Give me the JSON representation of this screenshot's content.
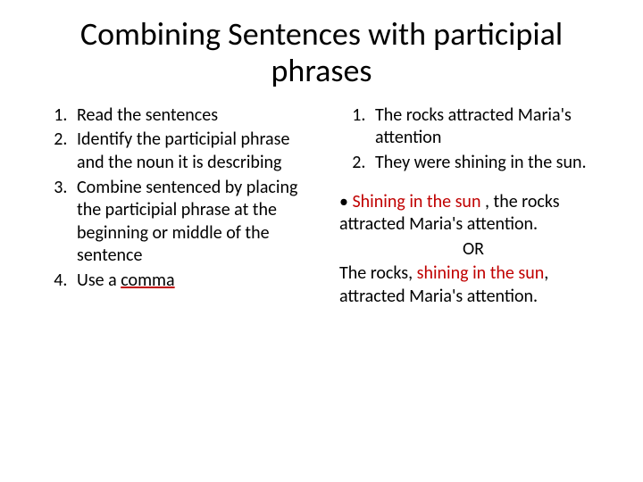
{
  "title": "Combining Sentences with participial phrases",
  "left": {
    "items": [
      "Read the sentences",
      "Identify the participial phrase and the noun it is describing",
      "Combine sentenced by placing the participial phrase at the beginning or middle of the sentence"
    ],
    "lastItemPrefix": "Use a ",
    "lastItemUnderlined": "comma"
  },
  "right": {
    "items": [
      "The rocks attracted Maria's attention",
      "They were shining in the sun."
    ],
    "bullet": "• ",
    "ex1_red": "Shining in the sun ",
    "ex1_rest": ", the rocks attracted Maria's attention.",
    "or": "OR",
    "ex2_pre": "The rocks, ",
    "ex2_red": "shining in the sun",
    "ex2_post": ", attracted Maria's attention."
  },
  "colors": {
    "text": "#000000",
    "accent": "#c00000",
    "background": "#ffffff"
  }
}
